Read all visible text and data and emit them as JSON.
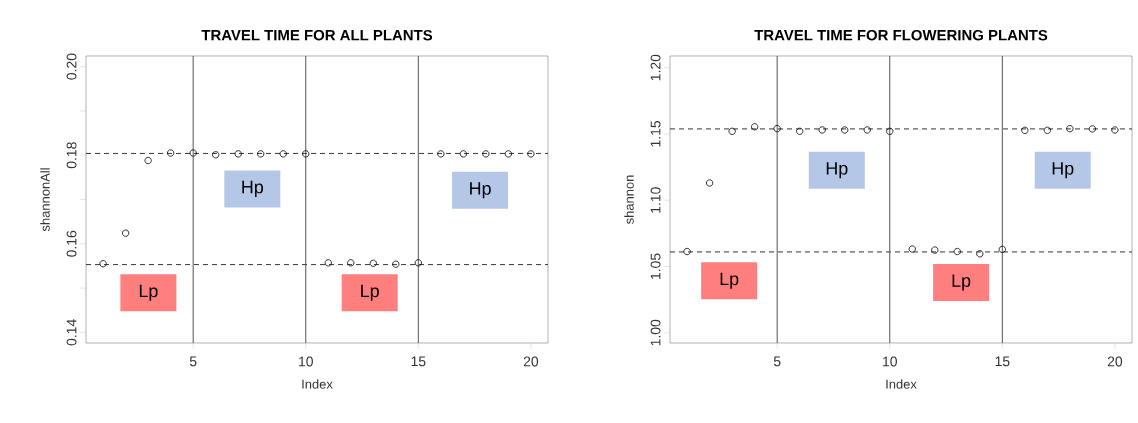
{
  "chart_data": [
    {
      "type": "scatter",
      "title": "TRAVEL TIME FOR ALL PLANTS",
      "xlabel": "Index",
      "ylabel": "shannonAll",
      "x": [
        1,
        2,
        3,
        4,
        5,
        6,
        7,
        8,
        9,
        10,
        11,
        12,
        13,
        14,
        15,
        16,
        17,
        18,
        19,
        20
      ],
      "series": [
        {
          "color": "#000000",
          "values": [
            0.1555,
            0.1624,
            0.1788,
            0.1805,
            0.1805,
            0.1801,
            0.1803,
            0.1803,
            0.1803,
            0.1803,
            0.1557,
            0.1557,
            0.1556,
            0.1554,
            0.1557,
            0.1803,
            0.1803,
            0.1803,
            0.1803,
            0.1803
          ]
        }
      ],
      "xlim": [
        0.24,
        20.76
      ],
      "ylim": [
        0.1376,
        0.2024
      ],
      "xticks": [
        5,
        10,
        15,
        20
      ],
      "yticks": [
        0.14,
        {
          "value": 0.15,
          "label": null
        },
        0.16,
        {
          "value": 0.17,
          "label": null
        },
        0.18,
        {
          "value": 0.19,
          "label": null
        },
        {
          "value": 0.2,
          "label": "0.20"
        }
      ],
      "marker": "circle",
      "grid": false,
      "ref_lines": [
        {
          "axis": "y",
          "value": 0.1804,
          "color": "#000000",
          "line_style": "dashed"
        },
        {
          "axis": "y",
          "value": 0.1553,
          "color": "#000000",
          "line_style": "dashed"
        },
        {
          "axis": "x",
          "value": 5,
          "color": "#555555",
          "line_style": "solid"
        },
        {
          "axis": "x",
          "value": 10,
          "color": "#555555",
          "line_style": "solid"
        },
        {
          "axis": "x",
          "value": 15,
          "color": "#555555",
          "line_style": "solid"
        }
      ],
      "annotations": [
        "Hp",
        "Hp",
        "Lp",
        "Lp"
      ]
    },
    {
      "type": "scatter",
      "title": "TRAVEL TIME FOR FLOWERING PLANTS",
      "xlabel": "Index",
      "ylabel": "shannon",
      "x": [
        1,
        2,
        3,
        4,
        5,
        6,
        7,
        8,
        9,
        10,
        11,
        12,
        13,
        14,
        15,
        16,
        17,
        18,
        19,
        20
      ],
      "series": [
        {
          "color": "#000000",
          "values": [
            1.0613,
            1.113,
            1.152,
            1.1554,
            1.154,
            1.152,
            1.153,
            1.153,
            1.153,
            1.152,
            1.0632,
            1.0624,
            1.0613,
            1.0596,
            1.0629,
            1.1527,
            1.1527,
            1.154,
            1.1538,
            1.153
          ]
        }
      ],
      "xlim": [
        0.24,
        20.76
      ],
      "ylim": [
        0.9923,
        1.2088
      ],
      "xticks": [
        5,
        10,
        15,
        20
      ],
      "yticks": [
        {
          "value": 1.0,
          "label": "1.00"
        },
        1.05,
        {
          "value": 1.1,
          "label": "1.10"
        },
        1.15,
        {
          "value": 1.2,
          "label": "1.20"
        }
      ],
      "marker": "circle",
      "grid": false,
      "ref_lines": [
        {
          "axis": "y",
          "value": 1.1538,
          "color": "#000000",
          "line_style": "dashed"
        },
        {
          "axis": "y",
          "value": 1.061,
          "color": "#000000",
          "line_style": "dashed"
        },
        {
          "axis": "x",
          "value": 5,
          "color": "#555555",
          "line_style": "solid"
        },
        {
          "axis": "x",
          "value": 10,
          "color": "#555555",
          "line_style": "solid"
        },
        {
          "axis": "x",
          "value": 15,
          "color": "#555555",
          "line_style": "solid"
        }
      ],
      "annotations": [
        "Hp",
        "Hp",
        "Lp",
        "Lp"
      ]
    }
  ]
}
